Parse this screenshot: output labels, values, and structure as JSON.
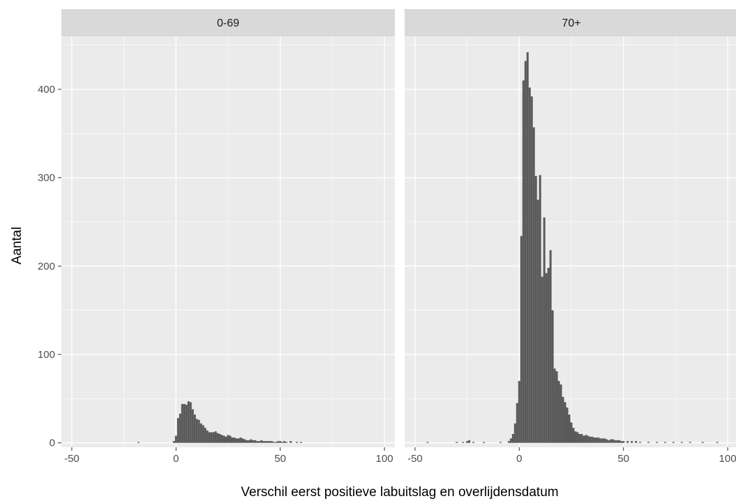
{
  "chart_data": {
    "type": "bar",
    "xlabel": "Verschil eerst positieve labuitslag en overlijdensdatum",
    "ylabel": "Aantal",
    "xlim": [
      -55,
      105
    ],
    "ylim": [
      -5,
      460
    ],
    "x_ticks": [
      -50,
      0,
      50,
      100
    ],
    "x_tick_labels": [
      "-50",
      "0",
      "50",
      "100"
    ],
    "y_ticks": [
      0,
      100,
      200,
      300,
      400
    ],
    "y_tick_labels": [
      "0",
      "100",
      "200",
      "300",
      "400"
    ],
    "grid": true,
    "bar_color": "#595959",
    "panel_background": "#ebebeb",
    "strip_background": "#d9d9d9",
    "gridline_color": "#ffffff",
    "panels": [
      {
        "label": "0-69",
        "x": [
          -18,
          -1,
          0,
          1,
          2,
          3,
          4,
          5,
          6,
          7,
          8,
          9,
          10,
          11,
          12,
          13,
          14,
          15,
          16,
          17,
          18,
          19,
          20,
          21,
          22,
          23,
          24,
          25,
          26,
          27,
          28,
          29,
          30,
          31,
          32,
          33,
          34,
          35,
          36,
          37,
          38,
          39,
          40,
          41,
          42,
          43,
          44,
          45,
          46,
          47,
          48,
          49,
          50,
          51,
          52,
          53,
          55,
          58,
          60
        ],
        "values": [
          1,
          2,
          8,
          28,
          33,
          44,
          44,
          43,
          47,
          46,
          38,
          32,
          27,
          26,
          22,
          20,
          17,
          14,
          12,
          12,
          12,
          13,
          11,
          10,
          9,
          8,
          7,
          9,
          8,
          6,
          6,
          5,
          5,
          6,
          5,
          4,
          3,
          3,
          4,
          3,
          3,
          2,
          2,
          3,
          2,
          2,
          2,
          2,
          2,
          1,
          1,
          2,
          2,
          1,
          2,
          1,
          2,
          1,
          1
        ]
      },
      {
        "label": "70+",
        "x": [
          -44,
          -30,
          -27,
          -25,
          -24,
          -22,
          -17,
          -9,
          -5,
          -4,
          -3,
          -2,
          -1,
          0,
          1,
          2,
          3,
          4,
          5,
          6,
          7,
          8,
          9,
          10,
          11,
          12,
          13,
          14,
          15,
          16,
          17,
          18,
          19,
          20,
          21,
          22,
          23,
          24,
          25,
          26,
          27,
          28,
          29,
          30,
          31,
          32,
          33,
          34,
          35,
          36,
          37,
          38,
          39,
          40,
          41,
          42,
          43,
          44,
          45,
          46,
          47,
          48,
          49,
          50,
          52,
          54,
          56,
          58,
          62,
          66,
          70,
          74,
          78,
          82,
          88,
          95
        ],
        "values": [
          1,
          1,
          1,
          2,
          3,
          1,
          1,
          1,
          2,
          5,
          10,
          22,
          45,
          70,
          234,
          410,
          432,
          442,
          402,
          392,
          357,
          302,
          275,
          303,
          188,
          255,
          192,
          198,
          218,
          150,
          84,
          81,
          70,
          66,
          52,
          46,
          40,
          32,
          23,
          17,
          13,
          12,
          10,
          10,
          8,
          9,
          8,
          7,
          7,
          6,
          6,
          6,
          5,
          5,
          5,
          4,
          3,
          4,
          4,
          3,
          3,
          3,
          2,
          2,
          2,
          2,
          2,
          1,
          1,
          1,
          1,
          1,
          1,
          1,
          1,
          1
        ]
      }
    ]
  }
}
